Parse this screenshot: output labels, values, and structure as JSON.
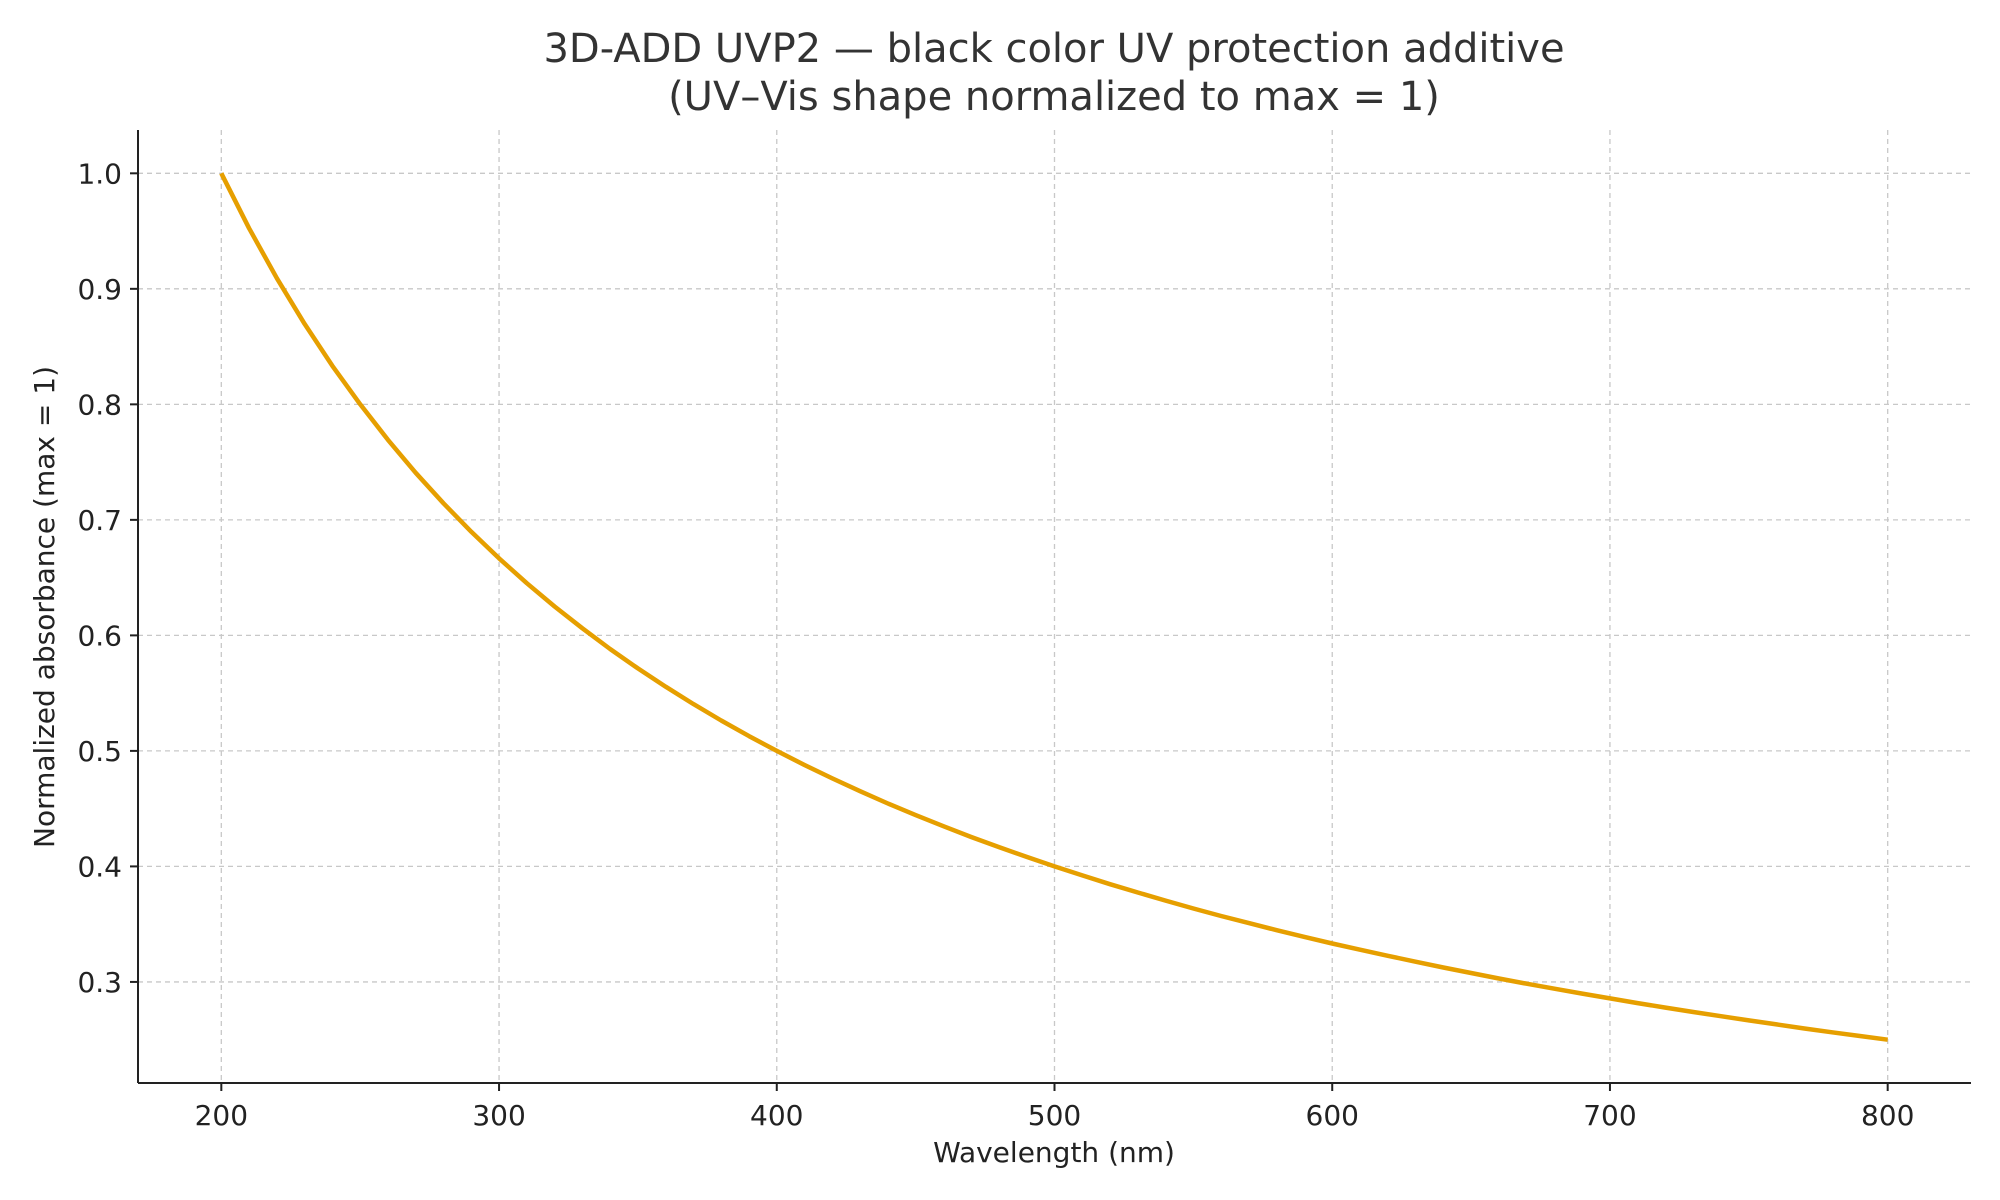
{
  "chart_data": {
    "type": "line",
    "title": "3D-ADD UVP2 — black color UV protection additive",
    "subtitle": "(UV–Vis shape normalized to max = 1)",
    "xlabel": "Wavelength (nm)",
    "ylabel": "Normalized absorbance (max = 1)",
    "xlim": [
      170,
      830
    ],
    "ylim": [
      0.2125,
      1.0375
    ],
    "xticks": [
      200,
      300,
      400,
      500,
      600,
      700,
      800
    ],
    "xtick_labels": [
      "200",
      "300",
      "400",
      "500",
      "600",
      "700",
      "800"
    ],
    "yticks": [
      0.3,
      0.4,
      0.5,
      0.6,
      0.7,
      0.8,
      0.9,
      1.0
    ],
    "ytick_labels": [
      "0.3",
      "0.4",
      "0.5",
      "0.6",
      "0.7",
      "0.8",
      "0.9",
      "1.0"
    ],
    "grid": true,
    "series": [
      {
        "color": "#E69F00",
        "x": [
          200,
          210,
          220,
          230,
          240,
          250,
          260,
          270,
          280,
          290,
          300,
          310,
          320,
          330,
          340,
          350,
          360,
          370,
          380,
          390,
          400,
          410,
          420,
          430,
          440,
          450,
          460,
          470,
          480,
          490,
          500,
          510,
          520,
          530,
          540,
          550,
          560,
          570,
          580,
          590,
          600,
          610,
          620,
          630,
          640,
          650,
          660,
          670,
          680,
          690,
          700,
          710,
          720,
          730,
          740,
          750,
          760,
          770,
          780,
          790,
          800
        ],
        "y": [
          1,
          0.9524,
          0.9091,
          0.8696,
          0.8333,
          0.8,
          0.7692,
          0.7407,
          0.7143,
          0.6897,
          0.6667,
          0.6452,
          0.625,
          0.6061,
          0.5882,
          0.5714,
          0.5556,
          0.5405,
          0.5263,
          0.5128,
          0.5,
          0.4878,
          0.4762,
          0.4651,
          0.4545,
          0.4444,
          0.4348,
          0.4255,
          0.4167,
          0.4082,
          0.4,
          0.3922,
          0.3846,
          0.3774,
          0.3704,
          0.3636,
          0.3571,
          0.3509,
          0.3448,
          0.339,
          0.3333,
          0.3279,
          0.3226,
          0.3175,
          0.3125,
          0.3077,
          0.303,
          0.2985,
          0.2941,
          0.2899,
          0.2857,
          0.2817,
          0.2778,
          0.274,
          0.2703,
          0.2667,
          0.2632,
          0.2597,
          0.2564,
          0.2532,
          0.25
        ]
      }
    ]
  }
}
